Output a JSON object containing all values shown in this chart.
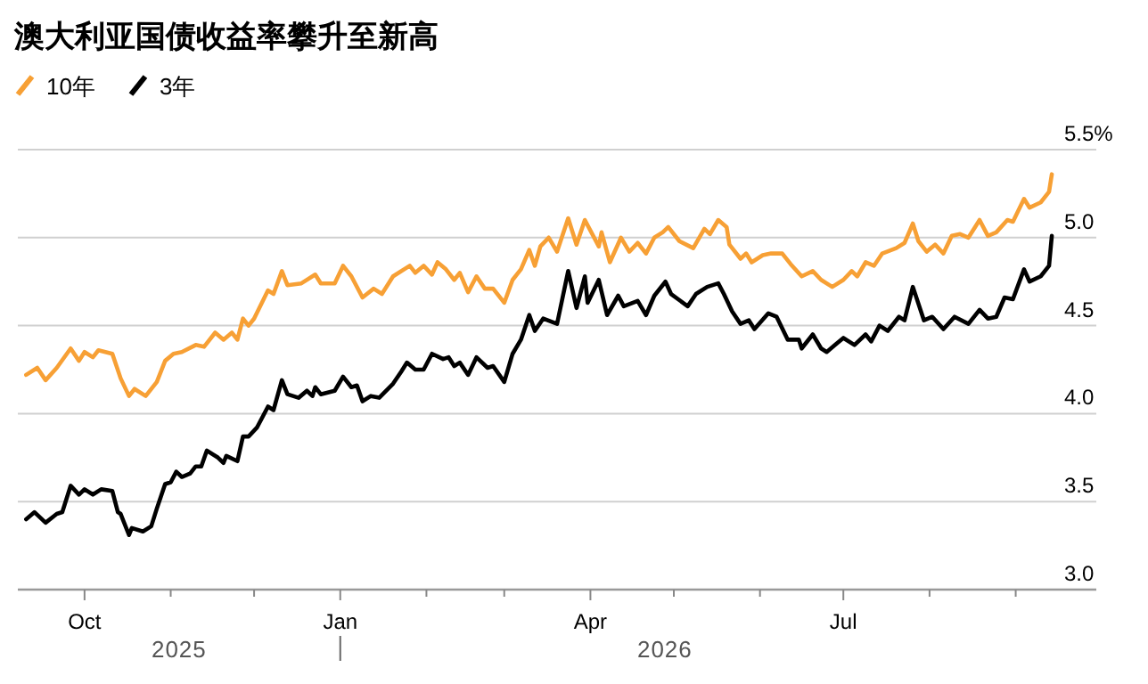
{
  "chart_data": {
    "type": "line",
    "title": "澳大利亚国债收益率攀升至新高",
    "legend": "top left",
    "grid": "y",
    "line_style": "solid",
    "marker": "none",
    "xlim": [
      "2025-09-07",
      "2026-09-30"
    ],
    "xticks": [
      {
        "value": "2025-10-01",
        "label": "Oct"
      },
      {
        "value": "2025-11-01",
        "label": null
      },
      {
        "value": "2025-12-01",
        "label": null
      },
      {
        "value": "2026-01-01",
        "label": "Jan"
      },
      {
        "value": "2026-02-01",
        "label": null
      },
      {
        "value": "2026-03-01",
        "label": null
      },
      {
        "value": "2026-04-01",
        "label": "Apr"
      },
      {
        "value": "2026-05-01",
        "label": null
      },
      {
        "value": "2026-06-01",
        "label": null
      },
      {
        "value": "2026-07-01",
        "label": "Jul"
      },
      {
        "value": "2026-08-01",
        "label": null
      },
      {
        "value": "2026-09-01",
        "label": null
      }
    ],
    "ylim": [
      3.0,
      5.5
    ],
    "yticks": [
      {
        "value": 3.0,
        "label": "3.0"
      },
      {
        "value": 3.5,
        "label": "3.5"
      },
      {
        "value": 4.0,
        "label": "4.0"
      },
      {
        "value": 4.5,
        "label": "4.5"
      },
      {
        "value": 5.0,
        "label": "5.0"
      },
      {
        "value": 5.5,
        "label": "5.5%"
      }
    ],
    "annotations": [
      "2025",
      "2026"
    ],
    "series": [
      {
        "name": "10年",
        "color": "#f7a035",
        "x": [
          "2025-09-10",
          "2025-09-14",
          "2025-09-17",
          "2025-09-21",
          "2025-09-26",
          "2025-09-29",
          "2025-10-01",
          "2025-10-04",
          "2025-10-06",
          "2025-10-11",
          "2025-10-14",
          "2025-10-17",
          "2025-10-19",
          "2025-10-23",
          "2025-10-27",
          "2025-10-30",
          "2025-11-02",
          "2025-11-05",
          "2025-11-10",
          "2025-11-13",
          "2025-11-17",
          "2025-11-20",
          "2025-11-23",
          "2025-11-25",
          "2025-11-27",
          "2025-11-29",
          "2025-12-01",
          "2025-12-06",
          "2025-12-08",
          "2025-12-11",
          "2025-12-13",
          "2025-12-18",
          "2025-12-23",
          "2025-12-25",
          "2025-12-30",
          "2026-01-02",
          "2026-01-05",
          "2026-01-09",
          "2026-01-13",
          "2026-01-16",
          "2026-01-20",
          "2026-01-26",
          "2026-01-28",
          "2026-01-31",
          "2026-02-03",
          "2026-02-05",
          "2026-02-08",
          "2026-02-11",
          "2026-02-13",
          "2026-02-16",
          "2026-02-19",
          "2026-02-22",
          "2026-02-25",
          "2026-03-01",
          "2026-03-04",
          "2026-03-07",
          "2026-03-10",
          "2026-03-12",
          "2026-03-14",
          "2026-03-17",
          "2026-03-20",
          "2026-03-24",
          "2026-03-27",
          "2026-03-30",
          "2026-04-04",
          "2026-04-05",
          "2026-04-08",
          "2026-04-12",
          "2026-04-15",
          "2026-04-18",
          "2026-04-21",
          "2026-04-24",
          "2026-04-27",
          "2026-04-29",
          "2026-05-03",
          "2026-05-08",
          "2026-05-12",
          "2026-05-14",
          "2026-05-17",
          "2026-05-20",
          "2026-05-21",
          "2026-05-25",
          "2026-05-27",
          "2026-05-29",
          "2026-06-02",
          "2026-06-05",
          "2026-06-09",
          "2026-06-12",
          "2026-06-16",
          "2026-06-20",
          "2026-06-23",
          "2026-06-27",
          "2026-07-01",
          "2026-07-04",
          "2026-07-06",
          "2026-07-09",
          "2026-07-12",
          "2026-07-15",
          "2026-07-20",
          "2026-07-23",
          "2026-07-26",
          "2026-07-28",
          "2026-07-31",
          "2026-08-03",
          "2026-08-06",
          "2026-08-09",
          "2026-08-12",
          "2026-08-15",
          "2026-08-19",
          "2026-08-22",
          "2026-08-25",
          "2026-08-29",
          "2026-08-31",
          "2026-09-04",
          "2026-09-06",
          "2026-09-10",
          "2026-09-13",
          "2026-09-14"
        ],
        "values": [
          4.22,
          4.26,
          4.19,
          4.26,
          4.37,
          4.3,
          4.35,
          4.32,
          4.36,
          4.34,
          4.2,
          4.1,
          4.14,
          4.1,
          4.18,
          4.3,
          4.34,
          4.35,
          4.39,
          4.38,
          4.46,
          4.42,
          4.46,
          4.42,
          4.54,
          4.5,
          4.54,
          4.7,
          4.68,
          4.81,
          4.73,
          4.74,
          4.79,
          4.74,
          4.74,
          4.84,
          4.78,
          4.66,
          4.71,
          4.68,
          4.78,
          4.84,
          4.8,
          4.84,
          4.79,
          4.86,
          4.82,
          4.76,
          4.8,
          4.69,
          4.78,
          4.71,
          4.71,
          4.63,
          4.76,
          4.82,
          4.93,
          4.84,
          4.95,
          5.0,
          4.92,
          5.11,
          4.96,
          5.1,
          4.95,
          5.03,
          4.86,
          5.0,
          4.92,
          4.97,
          4.91,
          5.0,
          5.03,
          5.06,
          4.98,
          4.94,
          5.05,
          5.02,
          5.1,
          5.06,
          4.96,
          4.88,
          4.91,
          4.86,
          4.9,
          4.91,
          4.91,
          4.85,
          4.78,
          4.81,
          4.76,
          4.72,
          4.76,
          4.81,
          4.78,
          4.86,
          4.84,
          4.91,
          4.94,
          4.97,
          5.08,
          4.98,
          4.92,
          4.96,
          4.91,
          5.01,
          5.02,
          5.0,
          5.1,
          5.01,
          5.03,
          5.1,
          5.09,
          5.22,
          5.17,
          5.2,
          5.26,
          5.36
        ]
      },
      {
        "name": "3年",
        "color": "#000000",
        "x": [
          "2025-09-10",
          "2025-09-13",
          "2025-09-17",
          "2025-09-21",
          "2025-09-23",
          "2025-09-26",
          "2025-09-29",
          "2025-10-01",
          "2025-10-04",
          "2025-10-07",
          "2025-10-11",
          "2025-10-13",
          "2025-10-14",
          "2025-10-17",
          "2025-10-18",
          "2025-10-22",
          "2025-10-25",
          "2025-10-27",
          "2025-10-30",
          "2025-11-01",
          "2025-11-03",
          "2025-11-05",
          "2025-11-08",
          "2025-11-10",
          "2025-11-12",
          "2025-11-14",
          "2025-11-18",
          "2025-11-20",
          "2025-11-21",
          "2025-11-25",
          "2025-11-27",
          "2025-11-29",
          "2025-12-02",
          "2025-12-06",
          "2025-12-08",
          "2025-12-11",
          "2025-12-13",
          "2025-12-17",
          "2025-12-20",
          "2025-12-22",
          "2025-12-23",
          "2025-12-25",
          "2025-12-30",
          "2026-01-02",
          "2026-01-05",
          "2026-01-07",
          "2026-01-09",
          "2026-01-12",
          "2026-01-15",
          "2026-01-20",
          "2026-01-23",
          "2026-01-25",
          "2026-01-28",
          "2026-01-31",
          "2026-02-03",
          "2026-02-07",
          "2026-02-09",
          "2026-02-11",
          "2026-02-13",
          "2026-02-16",
          "2026-02-19",
          "2026-02-23",
          "2026-02-25",
          "2026-03-01",
          "2026-03-04",
          "2026-03-07",
          "2026-03-10",
          "2026-03-12",
          "2026-03-15",
          "2026-03-20",
          "2026-03-24",
          "2026-03-27",
          "2026-03-30",
          "2026-03-31",
          "2026-04-04",
          "2026-04-07",
          "2026-04-11",
          "2026-04-13",
          "2026-04-18",
          "2026-04-21",
          "2026-04-24",
          "2026-04-28",
          "2026-04-30",
          "2026-05-06",
          "2026-05-09",
          "2026-05-13",
          "2026-05-17",
          "2026-05-19",
          "2026-05-22",
          "2026-05-25",
          "2026-05-28",
          "2026-05-30",
          "2026-06-04",
          "2026-06-07",
          "2026-06-11",
          "2026-06-15",
          "2026-06-16",
          "2026-06-20",
          "2026-06-23",
          "2026-06-25",
          "2026-06-28",
          "2026-07-01",
          "2026-07-05",
          "2026-07-09",
          "2026-07-11",
          "2026-07-14",
          "2026-07-17",
          "2026-07-21",
          "2026-07-23",
          "2026-07-26",
          "2026-07-30",
          "2026-08-02",
          "2026-08-06",
          "2026-08-10",
          "2026-08-15",
          "2026-08-19",
          "2026-08-22",
          "2026-08-25",
          "2026-08-28",
          "2026-08-31",
          "2026-09-04",
          "2026-09-06",
          "2026-09-10",
          "2026-09-13",
          "2026-09-14"
        ],
        "values": [
          3.4,
          3.44,
          3.38,
          3.43,
          3.44,
          3.59,
          3.54,
          3.57,
          3.54,
          3.57,
          3.56,
          3.44,
          3.43,
          3.31,
          3.35,
          3.33,
          3.36,
          3.46,
          3.6,
          3.61,
          3.67,
          3.64,
          3.66,
          3.7,
          3.7,
          3.79,
          3.75,
          3.72,
          3.76,
          3.73,
          3.87,
          3.87,
          3.92,
          4.04,
          4.02,
          4.19,
          4.11,
          4.09,
          4.13,
          4.1,
          4.15,
          4.11,
          4.13,
          4.21,
          4.15,
          4.16,
          4.07,
          4.1,
          4.09,
          4.17,
          4.24,
          4.29,
          4.25,
          4.25,
          4.34,
          4.31,
          4.32,
          4.27,
          4.29,
          4.22,
          4.32,
          4.26,
          4.27,
          4.18,
          4.34,
          4.42,
          4.56,
          4.47,
          4.54,
          4.51,
          4.81,
          4.6,
          4.78,
          4.63,
          4.76,
          4.56,
          4.67,
          4.61,
          4.64,
          4.56,
          4.67,
          4.75,
          4.68,
          4.61,
          4.68,
          4.72,
          4.74,
          4.68,
          4.58,
          4.51,
          4.53,
          4.48,
          4.57,
          4.55,
          4.42,
          4.42,
          4.37,
          4.45,
          4.37,
          4.35,
          4.39,
          4.43,
          4.39,
          4.45,
          4.41,
          4.5,
          4.47,
          4.55,
          4.53,
          4.72,
          4.53,
          4.55,
          4.48,
          4.55,
          4.51,
          4.59,
          4.54,
          4.55,
          4.66,
          4.65,
          4.82,
          4.75,
          4.78,
          4.84,
          5.01
        ]
      }
    ]
  }
}
